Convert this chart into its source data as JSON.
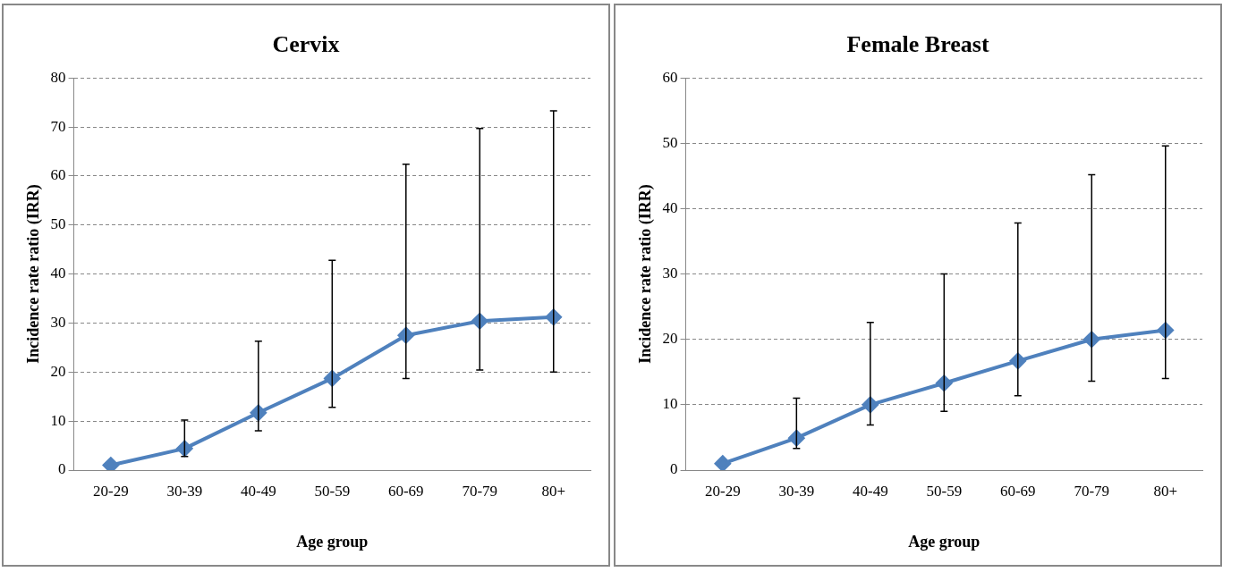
{
  "chart_data": [
    {
      "type": "line",
      "title": "Cervix",
      "xlabel": "Age group",
      "ylabel": "Incidence rate ratio (IRR)",
      "categories": [
        "20-29",
        "30-39",
        "40-49",
        "50-59",
        "60-69",
        "70-79",
        "80+"
      ],
      "series": [
        {
          "color": "#4f81bd",
          "values": [
            1.0,
            4.4,
            11.7,
            18.7,
            27.5,
            30.4,
            31.2
          ],
          "errors": [
            null,
            [
              2.8,
              10.2
            ],
            [
              8.0,
              26.3
            ],
            [
              12.8,
              42.8
            ],
            [
              18.7,
              62.4
            ],
            [
              20.4,
              69.7
            ],
            [
              20.0,
              73.3
            ]
          ]
        }
      ],
      "ylim": [
        0,
        80
      ],
      "yticks": [
        0,
        10,
        20,
        30,
        40,
        50,
        60,
        70,
        80
      ],
      "grid": "y",
      "legend": false,
      "marker": "diamond",
      "line_style": "solid"
    },
    {
      "type": "line",
      "title": "Female Breast",
      "xlabel": "Age group",
      "ylabel": "Incidence rate ratio (IRR)",
      "categories": [
        "20-29",
        "30-39",
        "40-49",
        "50-59",
        "60-69",
        "70-79",
        "80+"
      ],
      "series": [
        {
          "color": "#4f81bd",
          "values": [
            1.0,
            4.9,
            10.0,
            13.3,
            16.7,
            20.0,
            21.4
          ],
          "errors": [
            null,
            [
              3.3,
              11.0
            ],
            [
              6.9,
              22.6
            ],
            [
              9.0,
              30.0
            ],
            [
              11.4,
              37.8
            ],
            [
              13.6,
              45.2
            ],
            [
              14.0,
              49.6
            ]
          ]
        }
      ],
      "ylim": [
        0,
        60
      ],
      "yticks": [
        0,
        10,
        20,
        30,
        40,
        50,
        60
      ],
      "grid": "y",
      "legend": false,
      "marker": "diamond",
      "line_style": "solid"
    }
  ]
}
